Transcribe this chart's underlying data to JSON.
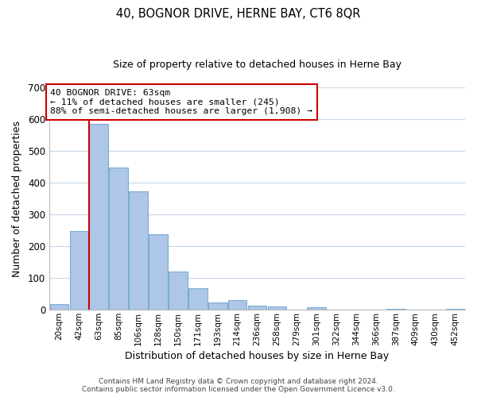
{
  "title": "40, BOGNOR DRIVE, HERNE BAY, CT6 8QR",
  "subtitle": "Size of property relative to detached houses in Herne Bay",
  "xlabel": "Distribution of detached houses by size in Herne Bay",
  "ylabel": "Number of detached properties",
  "bar_labels": [
    "20sqm",
    "42sqm",
    "63sqm",
    "85sqm",
    "106sqm",
    "128sqm",
    "150sqm",
    "171sqm",
    "193sqm",
    "214sqm",
    "236sqm",
    "258sqm",
    "279sqm",
    "301sqm",
    "322sqm",
    "344sqm",
    "366sqm",
    "387sqm",
    "409sqm",
    "430sqm",
    "452sqm"
  ],
  "bar_values": [
    18,
    248,
    585,
    448,
    373,
    238,
    121,
    67,
    24,
    31,
    14,
    10,
    0,
    9,
    0,
    0,
    0,
    4,
    0,
    0,
    3
  ],
  "bar_color": "#aec6e8",
  "bar_edge_color": "#7aadd4",
  "marker_index": 2,
  "marker_color": "#cc0000",
  "annotation_title": "40 BOGNOR DRIVE: 63sqm",
  "annotation_line1": "← 11% of detached houses are smaller (245)",
  "annotation_line2": "88% of semi-detached houses are larger (1,908) →",
  "annotation_box_color": "#ffffff",
  "annotation_box_edge": "#cc0000",
  "ylim": [
    0,
    700
  ],
  "yticks": [
    0,
    100,
    200,
    300,
    400,
    500,
    600,
    700
  ],
  "footer_line1": "Contains HM Land Registry data © Crown copyright and database right 2024.",
  "footer_line2": "Contains public sector information licensed under the Open Government Licence v3.0.",
  "background_color": "#ffffff",
  "grid_color": "#c8d8e8"
}
